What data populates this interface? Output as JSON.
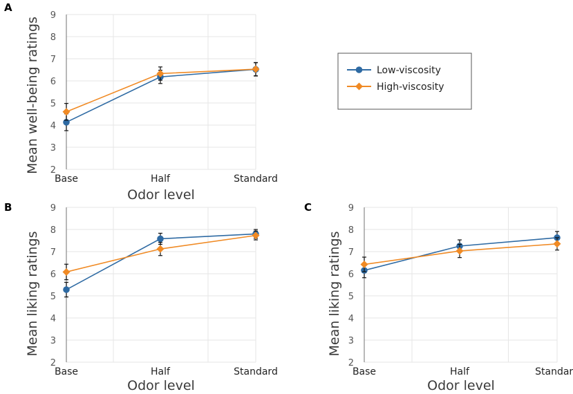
{
  "colors": {
    "low": "#2e6aa3",
    "high": "#f08a24",
    "grid": "#e6e6e6",
    "axis": "#888888",
    "error_bar": "#111111"
  },
  "legend": {
    "items": [
      {
        "label": "Low-viscosity",
        "color": "#2e6aa3",
        "marker": "circle"
      },
      {
        "label": "High-viscosity",
        "color": "#f08a24",
        "marker": "diamond"
      }
    ]
  },
  "chart_data": [
    {
      "panel": "A",
      "type": "line",
      "categories": [
        "Base",
        "Half",
        "Standard"
      ],
      "xlabel": "Odor level",
      "ylabel": "Mean well-being ratings",
      "ylim": [
        2,
        9
      ],
      "yticks": [
        2,
        3,
        4,
        5,
        6,
        7,
        8,
        9
      ],
      "series": [
        {
          "name": "Low-viscosity",
          "values": [
            4.13,
            6.18,
            6.52
          ],
          "errors": [
            0.38,
            0.3,
            0.3
          ]
        },
        {
          "name": "High-viscosity",
          "values": [
            4.6,
            6.33,
            6.53
          ],
          "errors": [
            0.38,
            0.3,
            0.3
          ]
        }
      ]
    },
    {
      "panel": "B",
      "type": "line",
      "categories": [
        "Base",
        "Half",
        "Standard"
      ],
      "xlabel": "Odor level",
      "ylabel": "Mean liking ratings",
      "ylim": [
        2,
        9
      ],
      "yticks": [
        2,
        3,
        4,
        5,
        6,
        7,
        8,
        9
      ],
      "series": [
        {
          "name": "Low-viscosity",
          "values": [
            5.28,
            7.58,
            7.8
          ],
          "errors": [
            0.33,
            0.25,
            0.2
          ]
        },
        {
          "name": "High-viscosity",
          "values": [
            6.08,
            7.12,
            7.73
          ],
          "errors": [
            0.35,
            0.3,
            0.2
          ]
        }
      ]
    },
    {
      "panel": "C",
      "type": "line",
      "categories": [
        "Base",
        "Half",
        "Standard"
      ],
      "xlabel": "Odor level",
      "ylabel": "Mean liking ratings",
      "ylim": [
        2,
        9
      ],
      "yticks": [
        2,
        3,
        4,
        5,
        6,
        7,
        8,
        9
      ],
      "series": [
        {
          "name": "Low-viscosity",
          "values": [
            6.15,
            7.25,
            7.63
          ],
          "errors": [
            0.33,
            0.28,
            0.28
          ]
        },
        {
          "name": "High-viscosity",
          "values": [
            6.42,
            7.03,
            7.35
          ],
          "errors": [
            0.33,
            0.3,
            0.28
          ]
        }
      ]
    }
  ]
}
